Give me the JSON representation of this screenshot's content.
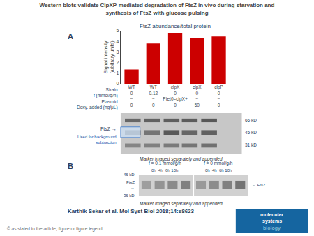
{
  "chart_data": {
    "type": "bar",
    "title": "Western blots validate ClpXP-mediated degradation of FtsZ in vivo during starvation and\nsynthesis of FtsZ with glucose pulsing",
    "subtitle": "FtsZ abundance/total protein",
    "categories": [
      "WT\n0\n−\n0",
      "WT\n0.12\n−\n0",
      "clpX\n0\nPtet0=clpX+\n0",
      "clpX\n0\n−\n50",
      "clpP\n0\n−\n0"
    ],
    "values": [
      1.35,
      3.8,
      4.8,
      4.3,
      4.45
    ],
    "color": "#cc0000",
    "ylabel": "Signal intensity\n(arbitrary units)",
    "ylim": [
      0,
      5
    ],
    "yticks": [
      0,
      1,
      2,
      3,
      4,
      5
    ],
    "grid": false,
    "annotations": [
      "Strain\nf (mmol/g/h)\nPlasmid\nDoxy. added (ng/μL)",
      "A",
      "FtsZ →",
      "Used for background\nsubtraction",
      "66 kD",
      "45 kD",
      "31 kD",
      "Marker imaged separately and appended",
      "B",
      "f = 0.1 mmol/g/h",
      "f = 0 mmol/g/h",
      "0h  4h  6h 10h",
      "0h  4h  6h 10h",
      "46 kD",
      "FtsZ\n→",
      "36 kD",
      "← FtsZ",
      "Marker imaged separately and appended",
      "Karthik Sekar et al. Mol Syst Biol 2018;14:e8623",
      "© as stated in the article, figure or figure legend",
      "molecular",
      "systems",
      "biology"
    ]
  }
}
